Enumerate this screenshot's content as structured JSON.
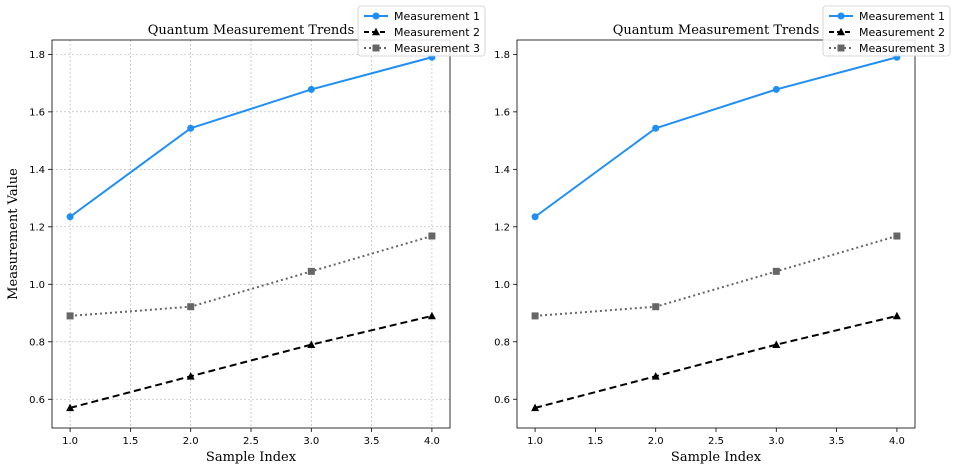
{
  "chart_data": [
    {
      "type": "line",
      "title": "Quantum Measurement Trends",
      "xlabel": "Sample Index",
      "ylabel": "Measurement Value",
      "grid": true,
      "xlim": [
        0.85,
        4.15
      ],
      "ylim": [
        0.5,
        1.85
      ],
      "xticks": [
        "1.0",
        "1.5",
        "2.0",
        "2.5",
        "3.0",
        "3.5",
        "4.0"
      ],
      "yticks": [
        "0.6",
        "0.8",
        "1.0",
        "1.2",
        "1.4",
        "1.6",
        "1.8"
      ],
      "x": [
        1,
        2,
        3,
        4
      ],
      "legend": "top-right",
      "series": [
        {
          "name": "Measurement 1",
          "values": [
            1.235,
            1.543,
            1.678,
            1.79
          ],
          "color": "#1f8ff5",
          "marker": "circle",
          "dash": "solid"
        },
        {
          "name": "Measurement 2",
          "values": [
            0.57,
            0.68,
            0.79,
            0.89
          ],
          "color": "#000000",
          "marker": "triangle",
          "dash": "dashed"
        },
        {
          "name": "Measurement 3",
          "values": [
            0.89,
            0.922,
            1.045,
            1.168
          ],
          "color": "#666666",
          "marker": "square",
          "dash": "dotted"
        }
      ]
    },
    {
      "type": "line",
      "title": "Quantum Measurement Trends",
      "xlabel": "Sample Index",
      "ylabel": "",
      "grid": false,
      "xlim": [
        0.85,
        4.15
      ],
      "ylim": [
        0.5,
        1.85
      ],
      "xticks": [
        "1.0",
        "1.5",
        "2.0",
        "2.5",
        "3.0",
        "3.5",
        "4.0"
      ],
      "yticks": [
        "0.6",
        "0.8",
        "1.0",
        "1.2",
        "1.4",
        "1.6",
        "1.8"
      ],
      "x": [
        1,
        2,
        3,
        4
      ],
      "legend": "top-right",
      "series": [
        {
          "name": "Measurement 1",
          "values": [
            1.235,
            1.543,
            1.678,
            1.79
          ],
          "color": "#1f8ff5",
          "marker": "circle",
          "dash": "solid"
        },
        {
          "name": "Measurement 2",
          "values": [
            0.57,
            0.68,
            0.79,
            0.89
          ],
          "color": "#000000",
          "marker": "triangle",
          "dash": "dashed"
        },
        {
          "name": "Measurement 3",
          "values": [
            0.89,
            0.922,
            1.045,
            1.168
          ],
          "color": "#666666",
          "marker": "square",
          "dash": "dotted"
        }
      ]
    }
  ]
}
